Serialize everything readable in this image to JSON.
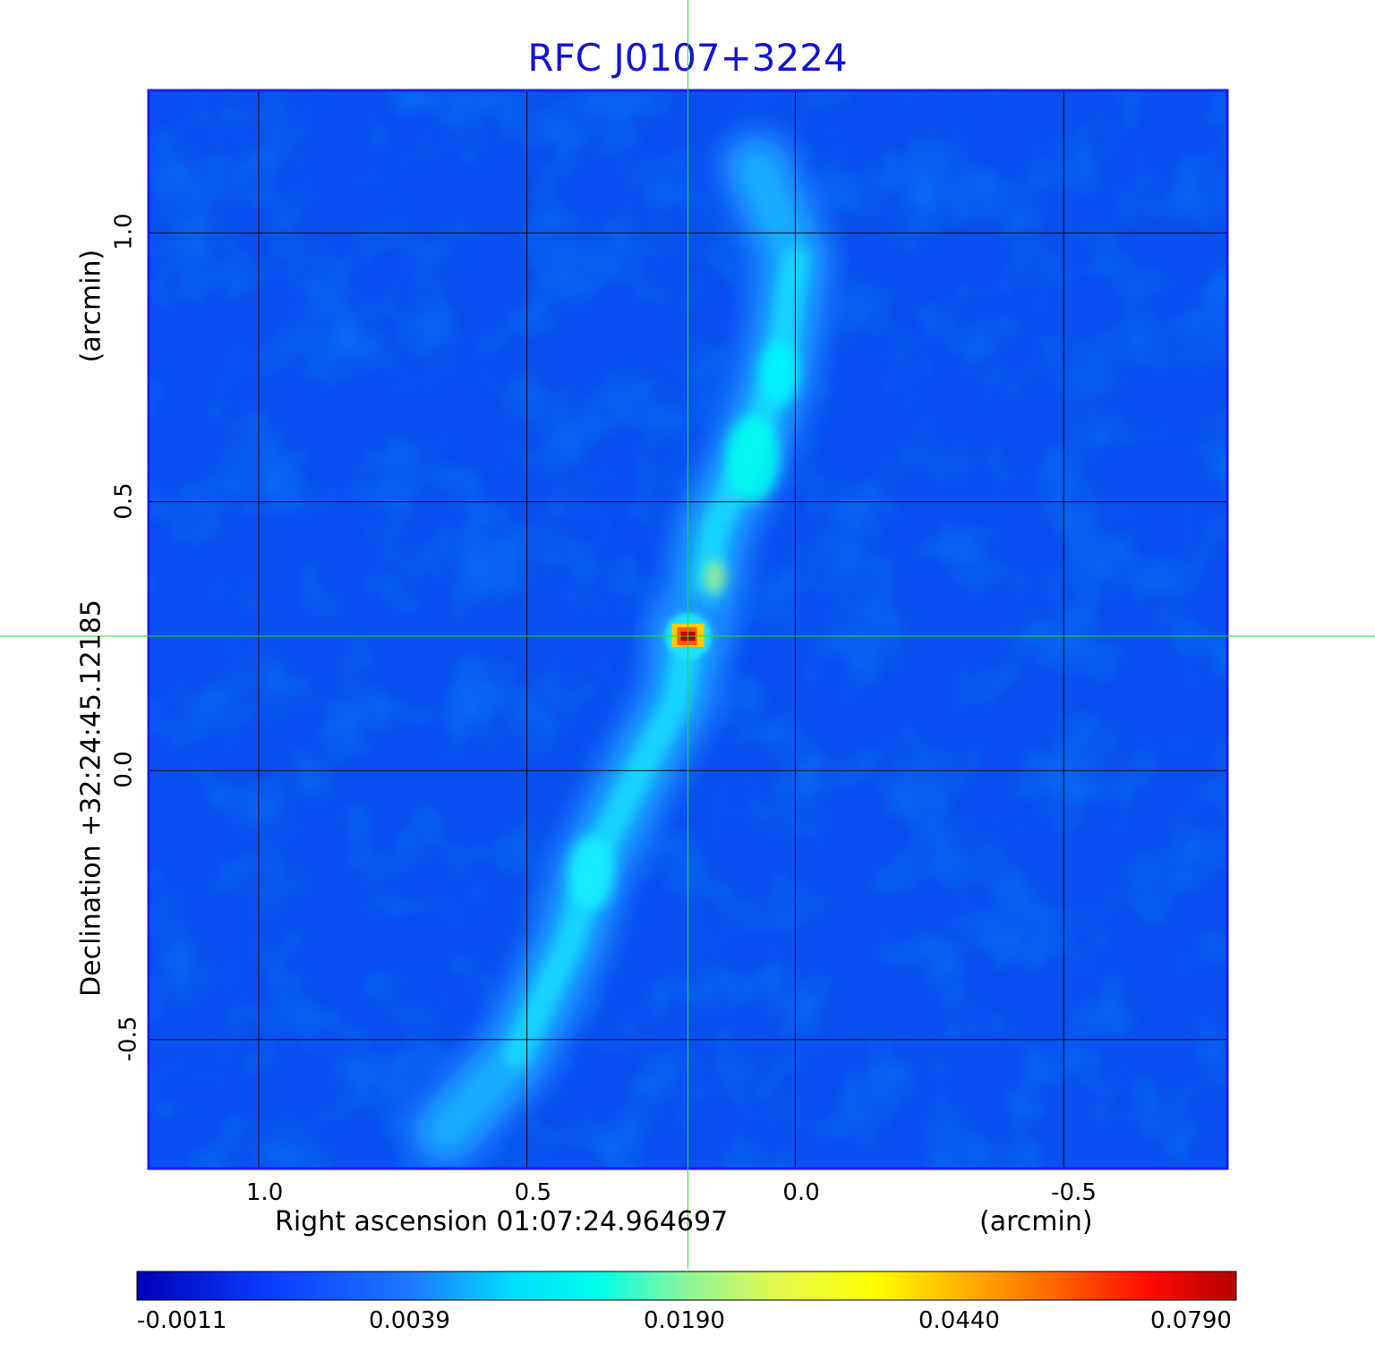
{
  "chart_data": {
    "type": "heatmap",
    "title": "RFC J0107+3224",
    "xlabel_left": "Right ascension  01:07:24.964697",
    "xlabel_right": "(arcmin)",
    "ylabel_left": "Declination  +32:24:45.12185",
    "ylabel_right": "(arcmin)",
    "x_ticks": [
      "1.0",
      "0.5",
      "0.0",
      "-0.5"
    ],
    "x_tick_values": [
      1.0,
      0.5,
      0.0,
      -0.5
    ],
    "y_ticks": [
      "1.0",
      "0.5",
      "0.0",
      "-0.5"
    ],
    "y_tick_values": [
      1.0,
      0.5,
      0.0,
      -0.5
    ],
    "xlim": [
      1.205,
      -0.805
    ],
    "ylim": [
      -0.74,
      1.265
    ],
    "grid": true,
    "crosshair": {
      "x": 0.2,
      "y": 0.25,
      "color": "#22dd22"
    },
    "colormap": "jet",
    "colorbar_ticks": [
      "-0.0011",
      "0.0039",
      "0.0190",
      "0.0440",
      "0.0790"
    ],
    "colorbar_tick_values": [
      -0.0011,
      0.0039,
      0.019,
      0.044,
      0.079
    ],
    "source": {
      "core": {
        "x": 0.2,
        "y": 0.25,
        "peak": 0.079
      },
      "jet_north": [
        [
          0.17,
          0.33
        ],
        [
          0.15,
          0.45
        ],
        [
          0.08,
          0.6
        ],
        [
          0.03,
          0.75
        ],
        [
          0.0,
          0.95
        ],
        [
          0.07,
          1.12
        ]
      ],
      "jet_south": [
        [
          0.22,
          0.13
        ],
        [
          0.3,
          -0.02
        ],
        [
          0.38,
          -0.18
        ],
        [
          0.42,
          -0.32
        ],
        [
          0.52,
          -0.53
        ],
        [
          0.65,
          -0.67
        ]
      ]
    }
  },
  "colors": {
    "title": "#1414d2",
    "frame": "#1a1aff",
    "background_field": "#0a50f0",
    "grid": "#000000"
  }
}
